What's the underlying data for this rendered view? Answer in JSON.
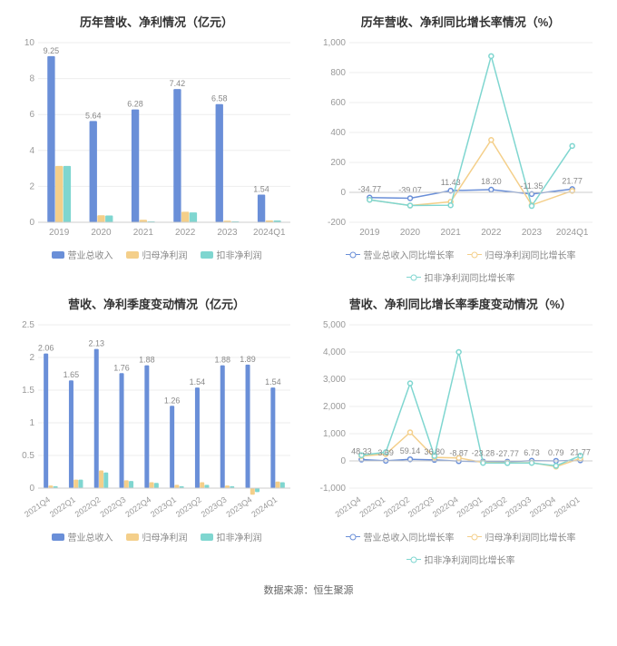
{
  "colors": {
    "revenue": "#6a8fd8",
    "net_profit": "#f4cf8a",
    "non_recurring": "#7fd6d0",
    "grid": "#eeeeee",
    "axis": "#cccccc",
    "text": "#999999",
    "bg": "#ffffff"
  },
  "legend_labels": {
    "bars": [
      "营业总收入",
      "归母净利润",
      "扣非净利润"
    ],
    "lines": [
      "营业总收入同比增长率",
      "归母净利润同比增长率",
      "扣非净利润同比增长率"
    ]
  },
  "top_left": {
    "title": "历年营收、净利情况（亿元）",
    "categories": [
      "2019",
      "2020",
      "2021",
      "2022",
      "2023",
      "2024Q1"
    ],
    "revenue": [
      9.25,
      5.64,
      6.28,
      7.42,
      6.58,
      1.54
    ],
    "net_profit": [
      3.14,
      0.39,
      0.14,
      0.59,
      0.09,
      0.1
    ],
    "non_recurring": [
      3.14,
      0.38,
      0.05,
      0.55,
      0.05,
      0.1
    ],
    "ymin": 0,
    "ymax": 10,
    "ystep": 2,
    "value_labels": [
      9.25,
      5.64,
      6.28,
      7.42,
      6.58,
      1.54
    ]
  },
  "top_right": {
    "title": "历年营收、净利同比增长率情况（%）",
    "categories": [
      "2019",
      "2020",
      "2021",
      "2022",
      "2023",
      "2024Q1"
    ],
    "revenue_growth": [
      -34.77,
      -39.07,
      11.43,
      18.2,
      -11.35,
      21.77
    ],
    "net_profit_growth": [
      -50,
      -88,
      -63,
      350,
      -85,
      10
    ],
    "non_recurring_growth": [
      -50,
      -88,
      -86,
      910,
      -91,
      310
    ],
    "ymin": -200,
    "ymax": 1000,
    "ystep": 200,
    "value_labels": [
      -34.77,
      -39.07,
      11.43,
      18.2,
      -11.35,
      21.77
    ]
  },
  "bottom_left": {
    "title": "营收、净利季度变动情况（亿元）",
    "categories": [
      "2021Q4",
      "2022Q1",
      "2022Q2",
      "2022Q3",
      "2022Q4",
      "2023Q1",
      "2023Q2",
      "2023Q3",
      "2023Q4",
      "2024Q1"
    ],
    "revenue": [
      2.06,
      1.65,
      2.13,
      1.76,
      1.88,
      1.26,
      1.54,
      1.88,
      1.89,
      1.54
    ],
    "net_profit": [
      0.04,
      0.13,
      0.27,
      0.12,
      0.09,
      0.05,
      0.09,
      0.04,
      -0.1,
      0.1
    ],
    "non_recurring": [
      0.03,
      0.13,
      0.24,
      0.11,
      0.08,
      0.03,
      0.05,
      0.03,
      -0.06,
      0.09
    ],
    "ymin": 0,
    "ymax": 2.5,
    "ystep": 0.5,
    "value_labels": [
      2.06,
      1.65,
      2.13,
      1.76,
      1.88,
      1.26,
      1.54,
      1.88,
      1.89,
      1.54
    ]
  },
  "bottom_right": {
    "title": "营收、净利同比增长率季度变动情况（%）",
    "categories": [
      "2021Q4",
      "2022Q1",
      "2022Q2",
      "2022Q3",
      "2022Q4",
      "2023Q1",
      "2023Q2",
      "2023Q3",
      "2023Q4",
      "2024Q1"
    ],
    "revenue_growth": [
      48.33,
      3.69,
      59.14,
      36.8,
      -8.87,
      -23.28,
      -27.77,
      6.73,
      0.79,
      21.77
    ],
    "net_profit_growth": [
      180,
      250,
      1050,
      130,
      110,
      -60,
      -65,
      -65,
      -210,
      90
    ],
    "non_recurring_growth": [
      210,
      320,
      2850,
      180,
      4000,
      -75,
      -80,
      -75,
      -180,
      190
    ],
    "ymin": -1000,
    "ymax": 5000,
    "ystep": 1000,
    "value_labels": [
      48.33,
      3.69,
      59.14,
      36.8,
      -8.87,
      -23.28,
      -27.77,
      6.73,
      0.79,
      21.77
    ]
  },
  "footer": "数据来源：恒生聚源"
}
